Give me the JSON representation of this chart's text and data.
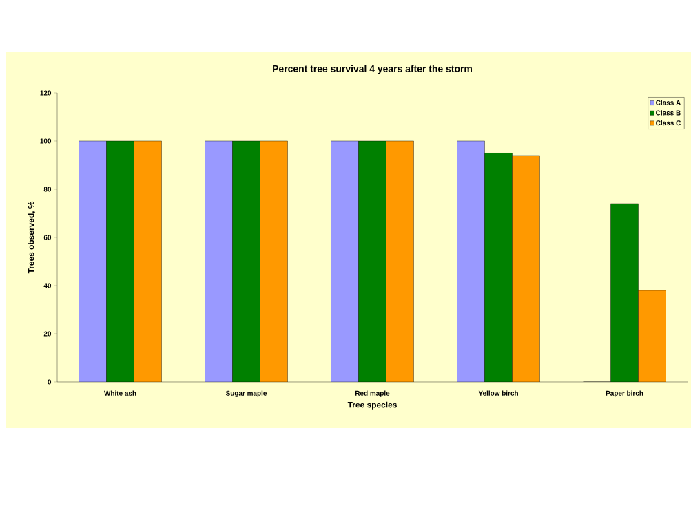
{
  "chart_data": {
    "type": "bar",
    "title": "Percent tree survival 4 years after the storm",
    "xlabel": "Tree species",
    "ylabel": "Trees observed, %",
    "categories": [
      "White ash",
      "Sugar maple",
      "Red maple",
      "Yellow birch",
      "Paper birch"
    ],
    "series": [
      {
        "name": "Class A",
        "color": "#9999ff",
        "values": [
          100,
          100,
          100,
          100,
          0
        ]
      },
      {
        "name": "Class B",
        "color": "#008000",
        "values": [
          100,
          100,
          100,
          95,
          74
        ]
      },
      {
        "name": "Class C",
        "color": "#ff9900",
        "values": [
          100,
          100,
          100,
          94,
          38
        ]
      }
    ],
    "ylim": [
      0,
      120
    ],
    "yticks": [
      0,
      20,
      40,
      60,
      80,
      100,
      120
    ],
    "legend": "top right"
  }
}
